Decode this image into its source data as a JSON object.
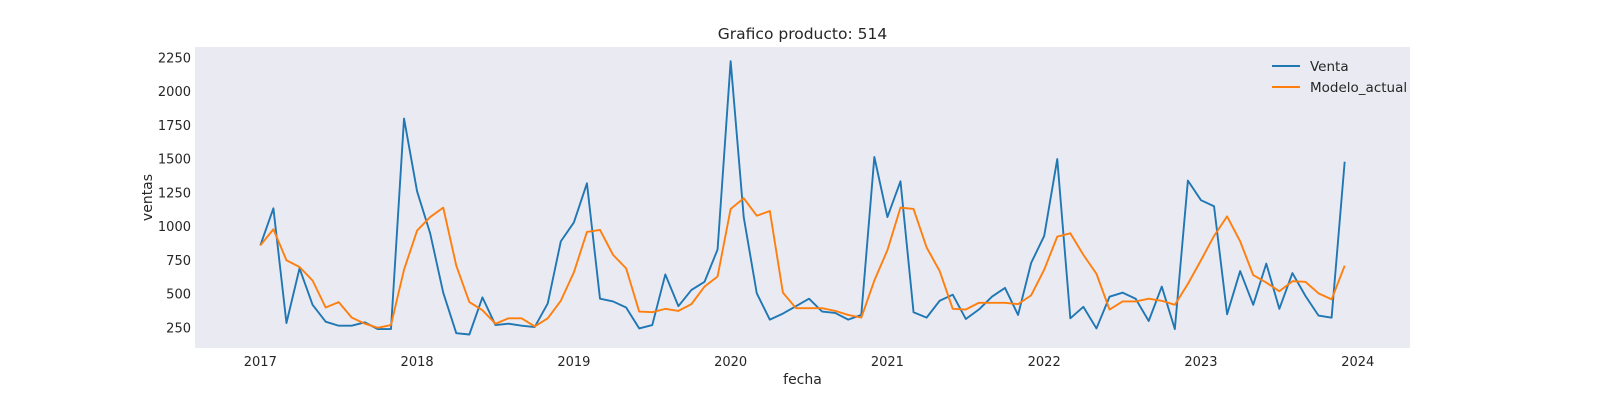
{
  "chart_data": {
    "type": "line",
    "title": "Grafico producto: 514",
    "xlabel": "fecha",
    "ylabel": "ventas",
    "x_start": "2017-01",
    "x_ticks": [
      "2017",
      "2018",
      "2019",
      "2020",
      "2021",
      "2022",
      "2023",
      "2024"
    ],
    "y_ticks": [
      250,
      500,
      750,
      1000,
      1250,
      1500,
      1750,
      2000,
      2250
    ],
    "xlim": [
      "2016-08",
      "2024-05"
    ],
    "ylim": [
      100,
      2330
    ],
    "grid": false,
    "legend_position": "top-right",
    "colors": {
      "background": "#eaeaf2",
      "venta": "#1f77b4",
      "modelo": "#ff7f0e"
    },
    "series": [
      {
        "name": "Venta",
        "values": [
          860,
          1135,
          285,
          690,
          420,
          295,
          265,
          265,
          290,
          240,
          240,
          1800,
          1260,
          950,
          510,
          210,
          200,
          475,
          270,
          280,
          265,
          255,
          430,
          890,
          1030,
          1320,
          465,
          445,
          400,
          245,
          270,
          645,
          410,
          530,
          590,
          830,
          2225,
          1070,
          505,
          310,
          355,
          410,
          465,
          370,
          360,
          310,
          345,
          1515,
          1070,
          1335,
          365,
          325,
          450,
          495,
          315,
          385,
          480,
          545,
          345,
          730,
          930,
          1500,
          320,
          405,
          245,
          480,
          510,
          465,
          300,
          555,
          240,
          1340,
          1195,
          1150,
          350,
          670,
          420,
          725,
          390,
          655,
          485,
          340,
          325,
          1480
        ]
      },
      {
        "name": "Modelo_actual",
        "values": [
          860,
          980,
          750,
          700,
          600,
          400,
          440,
          325,
          280,
          250,
          270,
          680,
          970,
          1070,
          1140,
          710,
          440,
          380,
          280,
          320,
          320,
          260,
          320,
          450,
          660,
          960,
          975,
          790,
          690,
          370,
          365,
          390,
          375,
          425,
          555,
          630,
          1130,
          1210,
          1080,
          1115,
          510,
          395,
          395,
          395,
          375,
          345,
          325,
          600,
          825,
          1140,
          1130,
          845,
          670,
          390,
          385,
          435,
          435,
          435,
          425,
          490,
          680,
          925,
          950,
          790,
          650,
          385,
          445,
          445,
          465,
          450,
          420,
          575,
          750,
          930,
          1075,
          890,
          640,
          585,
          520,
          595,
          590,
          505,
          460,
          710
        ]
      }
    ]
  }
}
